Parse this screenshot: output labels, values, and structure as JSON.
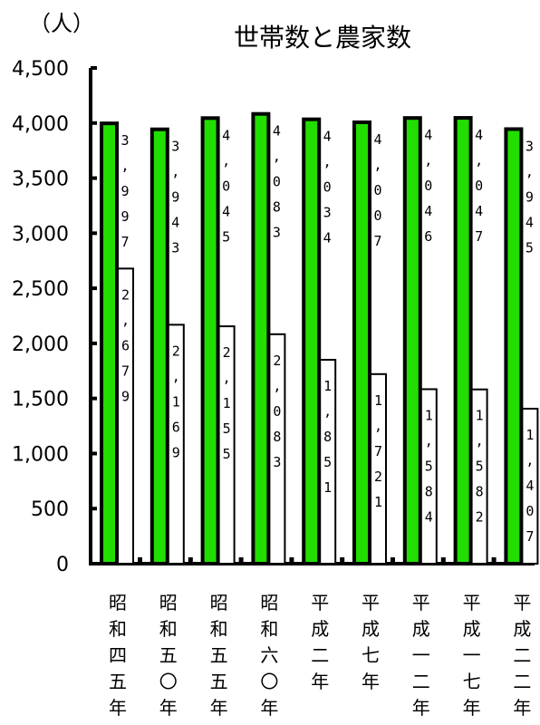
{
  "chart_data": {
    "type": "bar",
    "title": "世帯数と農家数",
    "unit_label": "（人）",
    "categories": [
      "昭和四五年",
      "昭和五〇年",
      "昭和五五年",
      "昭和六〇年",
      "平成二年",
      "平成七年",
      "平成一二年",
      "平成一七年",
      "平成二二年"
    ],
    "series": [
      {
        "values": [
          3997,
          3943,
          4045,
          4083,
          4034,
          4007,
          4046,
          4047,
          3945
        ],
        "labels": [
          "3,997",
          "3,943",
          "4,045",
          "4,083",
          "4,034",
          "4,007",
          "4,046",
          "4,047",
          "3,945"
        ]
      },
      {
        "values": [
          2679,
          2169,
          2155,
          2083,
          1851,
          1721,
          1584,
          1582,
          1407
        ],
        "labels": [
          "2,679",
          "2,169",
          "2,155",
          "2,083",
          "1,851",
          "1,721",
          "1,584",
          "1,582",
          "1,407"
        ]
      }
    ],
    "ylim": [
      0,
      4500
    ],
    "yticks": [
      "0",
      "500",
      "1,000",
      "1,500",
      "2,000",
      "2,500",
      "3,000",
      "3,500",
      "4,000",
      "4,500"
    ],
    "grid": false,
    "colors": {
      "series1": "#22dd00",
      "series2": "#ffffff",
      "outline": "#000000"
    }
  }
}
